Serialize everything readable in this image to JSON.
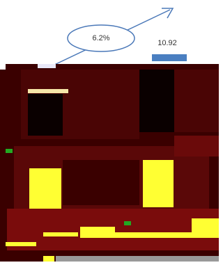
{
  "annotation": {
    "label": "6.2%"
  },
  "bar_label": "10.92"
}
